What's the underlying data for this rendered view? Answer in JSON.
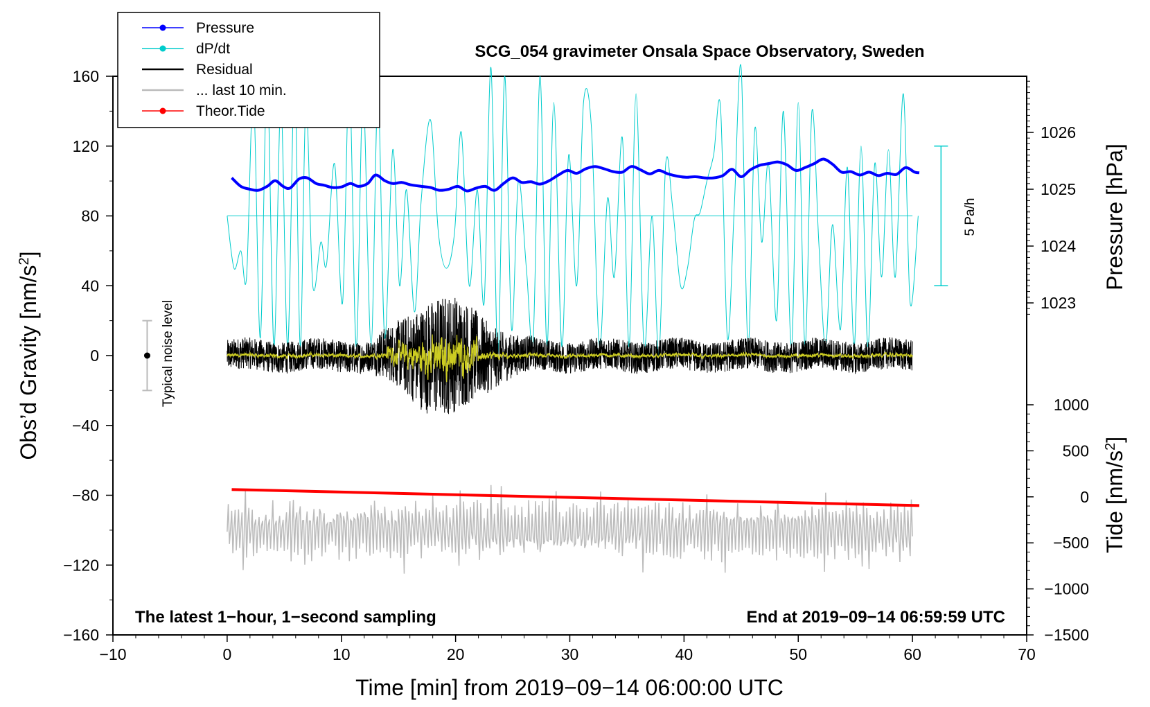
{
  "chart_data": {
    "type": "line",
    "title": "SCG_054 gravimeter Onsala Space Observatory, Sweden",
    "xlabel": "Time [min] from 2019−09−14 06:00:00 UTC",
    "ylabel": "Obs’d Gravity [nm/s²]",
    "ylabel_main": "Obs’d Gravity [nm/s",
    "ylabel_sup": "2",
    "ylabel_close": "]",
    "right_label_pressure": "Pressure [hPa]",
    "right_label_tide_main": "Tide [nm/s",
    "right_label_tide_sup": "2",
    "right_label_tide_close": "]",
    "xlim": [
      -10,
      70
    ],
    "ylim": [
      -160,
      160
    ],
    "pressure_lim": [
      1021.6,
      1026.9
    ],
    "tide_lim": [
      -1500,
      1500
    ],
    "x_ticks": [
      "−10",
      "0",
      "10",
      "20",
      "30",
      "40",
      "50",
      "60",
      "70"
    ],
    "y_ticks": [
      "160",
      "120",
      "80",
      "40",
      "0",
      "−40",
      "−80",
      "−120",
      "−160"
    ],
    "pressure_ticks": [
      "1026",
      "1025",
      "1024",
      "1023"
    ],
    "tide_ticks": [
      "1000",
      "500",
      "0",
      "−500",
      "−1000",
      "−1500"
    ],
    "legend": [
      {
        "label": "Pressure",
        "color": "#0000ff",
        "marker": true
      },
      {
        "label": "dP/dt",
        "color": "#00cccc",
        "marker": true
      },
      {
        "label": "Residual",
        "color": "#000000",
        "marker": false
      },
      {
        "label": "... last 10 min.",
        "color": "#bbbbbb",
        "marker": false
      },
      {
        "label": "Theor.Tide",
        "color": "#ff0000",
        "marker": true
      }
    ],
    "legend_position": "top-left",
    "annotations": {
      "bottom_left": "The latest 1−hour, 1−second sampling",
      "bottom_right": "End at 2019−09−14 06:59:59 UTC",
      "noise_label": "Typical noise level",
      "scale_label": "5 Pa/h"
    },
    "noise_bar": {
      "x": -7,
      "y": 0,
      "half_range": 20
    },
    "dpdt_zero_line": 80,
    "dpdt_scale_bar": {
      "x": 62.5,
      "from": 40,
      "to": 120
    },
    "series": [
      {
        "name": "Pressure",
        "axis": "pressure",
        "color": "#0000ff",
        "points": [
          [
            0.4,
            1025.2
          ],
          [
            1.2,
            1025.05
          ],
          [
            2,
            1025.0
          ],
          [
            2.7,
            1024.98
          ],
          [
            3.5,
            1025.05
          ],
          [
            4.2,
            1025.15
          ],
          [
            4.9,
            1025.05
          ],
          [
            5.5,
            1025.02
          ],
          [
            6.3,
            1025.18
          ],
          [
            7,
            1025.2
          ],
          [
            7.8,
            1025.1
          ],
          [
            8.5,
            1025.07
          ],
          [
            9.2,
            1025.03
          ],
          [
            10,
            1025.04
          ],
          [
            10.8,
            1025.1
          ],
          [
            11.5,
            1025.05
          ],
          [
            12.3,
            1025.1
          ],
          [
            13,
            1025.25
          ],
          [
            13.8,
            1025.15
          ],
          [
            14.5,
            1025.1
          ],
          [
            15.3,
            1025.12
          ],
          [
            16,
            1025.08
          ],
          [
            17,
            1025.05
          ],
          [
            17.8,
            1025.03
          ],
          [
            18.6,
            1024.98
          ],
          [
            19.4,
            1025.0
          ],
          [
            20.2,
            1025.05
          ],
          [
            21,
            1024.97
          ],
          [
            21.8,
            1025.02
          ],
          [
            22.6,
            1025.05
          ],
          [
            23.4,
            1024.98
          ],
          [
            24.2,
            1025.1
          ],
          [
            25,
            1025.2
          ],
          [
            25.8,
            1025.12
          ],
          [
            26.6,
            1025.13
          ],
          [
            27.4,
            1025.09
          ],
          [
            28.2,
            1025.15
          ],
          [
            29,
            1025.25
          ],
          [
            29.8,
            1025.33
          ],
          [
            30.6,
            1025.28
          ],
          [
            31.4,
            1025.36
          ],
          [
            32.2,
            1025.4
          ],
          [
            33,
            1025.36
          ],
          [
            33.8,
            1025.31
          ],
          [
            34.6,
            1025.3
          ],
          [
            35.4,
            1025.4
          ],
          [
            36.2,
            1025.34
          ],
          [
            37,
            1025.27
          ],
          [
            37.8,
            1025.33
          ],
          [
            38.6,
            1025.27
          ],
          [
            39.4,
            1025.23
          ],
          [
            40.2,
            1025.21
          ],
          [
            41,
            1025.22
          ],
          [
            41.8,
            1025.2
          ],
          [
            42.6,
            1025.2
          ],
          [
            43.4,
            1025.24
          ],
          [
            44.2,
            1025.35
          ],
          [
            45,
            1025.22
          ],
          [
            45.8,
            1025.34
          ],
          [
            46.6,
            1025.42
          ],
          [
            47.4,
            1025.45
          ],
          [
            48.2,
            1025.48
          ],
          [
            49,
            1025.43
          ],
          [
            49.8,
            1025.33
          ],
          [
            50.6,
            1025.38
          ],
          [
            51.4,
            1025.45
          ],
          [
            52.2,
            1025.53
          ],
          [
            53,
            1025.44
          ],
          [
            53.8,
            1025.3
          ],
          [
            54.6,
            1025.31
          ],
          [
            55.4,
            1025.25
          ],
          [
            56.2,
            1025.3
          ],
          [
            57,
            1025.24
          ],
          [
            57.8,
            1025.28
          ],
          [
            58.6,
            1025.26
          ],
          [
            59.4,
            1025.38
          ],
          [
            60.2,
            1025.3
          ],
          [
            60.6,
            1025.29
          ]
        ]
      },
      {
        "name": "dP/dt",
        "axis": "gravity",
        "color": "#00cccc",
        "points": [
          [
            0,
            80
          ],
          [
            0.6,
            50
          ],
          [
            1.2,
            60
          ],
          [
            1.7,
            45
          ],
          [
            2.3,
            150
          ],
          [
            2.9,
            10
          ],
          [
            3.5,
            160
          ],
          [
            4.1,
            5
          ],
          [
            4.7,
            145
          ],
          [
            5.3,
            5
          ],
          [
            5.9,
            160
          ],
          [
            6.4,
            5
          ],
          [
            6.9,
            145
          ],
          [
            7.5,
            40
          ],
          [
            8.2,
            65
          ],
          [
            8.7,
            52
          ],
          [
            9.4,
            110
          ],
          [
            10.1,
            30
          ],
          [
            10.7,
            160
          ],
          [
            11.3,
            5
          ],
          [
            11.9,
            150
          ],
          [
            12.6,
            5
          ],
          [
            13.2,
            150
          ],
          [
            13.8,
            10
          ],
          [
            14.5,
            118
          ],
          [
            15.1,
            40
          ],
          [
            15.7,
            95
          ],
          [
            16.4,
            25
          ],
          [
            17,
            90
          ],
          [
            17.8,
            135
          ],
          [
            18.5,
            70
          ],
          [
            19.2,
            50
          ],
          [
            19.9,
            70
          ],
          [
            20.5,
            128
          ],
          [
            21.2,
            40
          ],
          [
            21.9,
            95
          ],
          [
            22.5,
            30
          ],
          [
            23.1,
            165
          ],
          [
            23.7,
            0
          ],
          [
            24.3,
            160
          ],
          [
            24.9,
            15
          ],
          [
            25.5,
            100
          ],
          [
            26.2,
            50
          ],
          [
            26.8,
            10
          ],
          [
            27.4,
            160
          ],
          [
            28,
            5
          ],
          [
            28.6,
            145
          ],
          [
            29.3,
            5
          ],
          [
            29.9,
            115
          ],
          [
            30.6,
            40
          ],
          [
            31.2,
            145
          ],
          [
            31.9,
            130
          ],
          [
            32.6,
            5
          ],
          [
            33.3,
            90
          ],
          [
            33.9,
            45
          ],
          [
            34.6,
            125
          ],
          [
            35.2,
            5
          ],
          [
            35.8,
            150
          ],
          [
            36.5,
            5
          ],
          [
            37.2,
            80
          ],
          [
            37.8,
            0
          ],
          [
            38.4,
            110
          ],
          [
            39,
            85
          ],
          [
            39.7,
            40
          ],
          [
            40.3,
            50
          ],
          [
            40.9,
            78
          ],
          [
            41.4,
            82
          ],
          [
            42,
            100
          ],
          [
            42.6,
            115
          ],
          [
            43.2,
            142
          ],
          [
            43.8,
            10
          ],
          [
            44.4,
            85
          ],
          [
            45,
            165
          ],
          [
            45.6,
            5
          ],
          [
            46.2,
            130
          ],
          [
            46.8,
            65
          ],
          [
            47.4,
            110
          ],
          [
            48.1,
            20
          ],
          [
            48.7,
            140
          ],
          [
            49.4,
            5
          ],
          [
            50,
            145
          ],
          [
            50.6,
            5
          ],
          [
            51.2,
            140
          ],
          [
            51.8,
            65
          ],
          [
            52.4,
            5
          ],
          [
            53,
            75
          ],
          [
            53.7,
            15
          ],
          [
            54.3,
            108
          ],
          [
            54.9,
            5
          ],
          [
            55.5,
            120
          ],
          [
            56.1,
            5
          ],
          [
            56.7,
            110
          ],
          [
            57.3,
            45
          ],
          [
            57.9,
            118
          ],
          [
            58.5,
            45
          ],
          [
            59.2,
            150
          ],
          [
            59.8,
            30
          ],
          [
            60.5,
            80
          ]
        ]
      },
      {
        "name": "Theor.Tide",
        "axis": "tide",
        "color": "#ff0000",
        "points": [
          [
            0.4,
            80
          ],
          [
            60.6,
            -95
          ]
        ]
      }
    ],
    "noise_series": [
      {
        "name": "Residual",
        "axis": "gravity",
        "color": "#000000",
        "x_range": [
          0,
          60
        ]
      },
      {
        "name": "Residual (filtered)",
        "axis": "gravity",
        "color": "#cccc22",
        "x_range": [
          0,
          60
        ]
      },
      {
        "name": "... last 10 min.",
        "axis": "gravity",
        "color": "#bbbbbb",
        "x_range": [
          0,
          60
        ],
        "center": -100
      }
    ]
  }
}
